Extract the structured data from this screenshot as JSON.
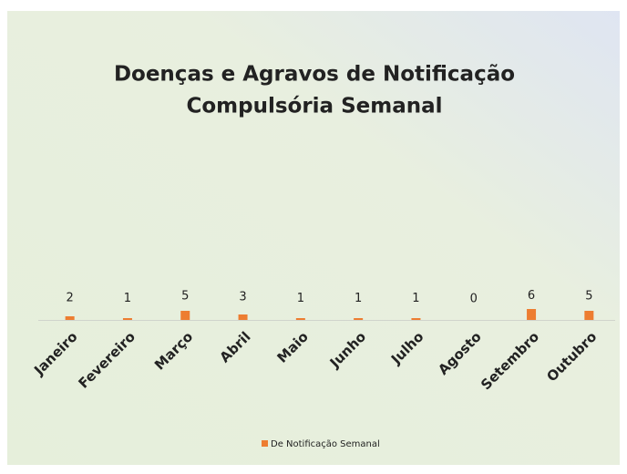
{
  "chart_data": {
    "type": "bar",
    "title": [
      "Doenças e Agravos de Notificação",
      "Compulsória Semanal"
    ],
    "categories": [
      "Janeiro",
      "Fevereiro",
      "Março",
      "Abril",
      "Maio",
      "Junho",
      "Julho",
      "Agosto",
      "Setembro",
      "Outubro"
    ],
    "series": [
      {
        "name": "De Notificação Semanal",
        "color": "#ed7d31",
        "values": [
          2,
          1,
          5,
          3,
          1,
          1,
          1,
          0,
          6,
          5
        ]
      }
    ],
    "legend": "bottom"
  }
}
